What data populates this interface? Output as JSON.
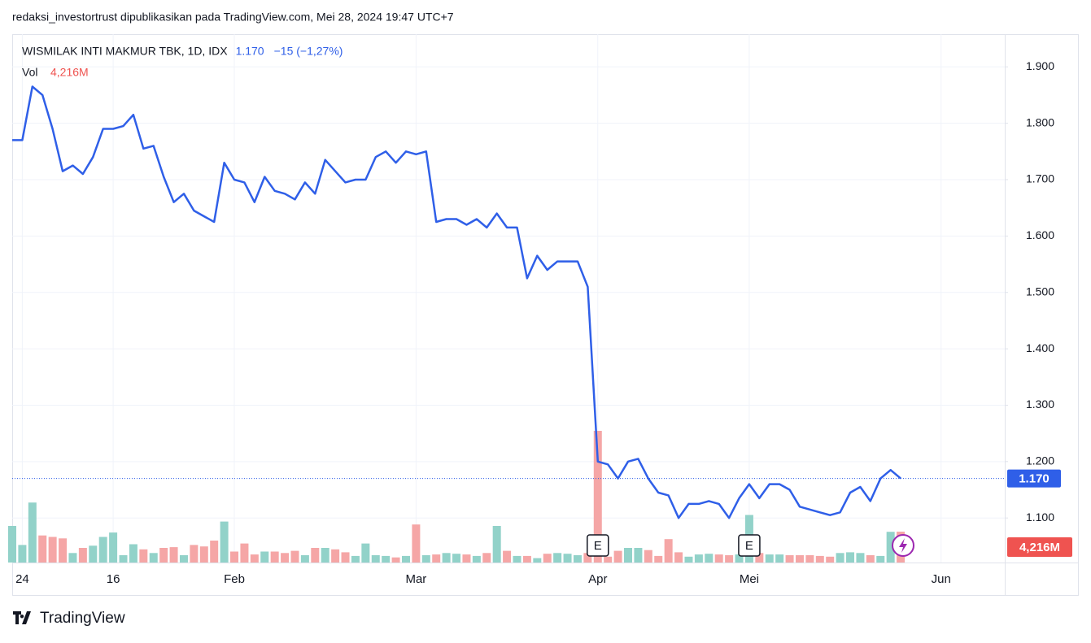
{
  "header": {
    "publisher": "redaksi_investortrust dipublikasikan pada TradingView.com, Mei 28, 2024 19:47 UTC+7"
  },
  "chart_data": {
    "type": "line",
    "title": "WISMILAK INTI MAKMUR TBK, 1D, IDX",
    "last_price": {
      "value": 1170,
      "label": "1.170"
    },
    "change": "−15 (−1,27%)",
    "volume_title": "Vol",
    "volume_label": "4,216M",
    "categories": [
      null,
      "24",
      null,
      null,
      null,
      null,
      null,
      null,
      null,
      null,
      "16",
      null,
      null,
      null,
      null,
      null,
      null,
      null,
      null,
      null,
      null,
      null,
      "Feb",
      null,
      null,
      null,
      null,
      null,
      null,
      null,
      null,
      null,
      null,
      null,
      null,
      null,
      null,
      null,
      null,
      null,
      "Mar",
      null,
      null,
      null,
      null,
      null,
      null,
      null,
      null,
      null,
      null,
      null,
      null,
      null,
      null,
      null,
      null,
      null,
      "Apr",
      null,
      null,
      null,
      null,
      null,
      null,
      null,
      null,
      null,
      null,
      null,
      null,
      null,
      null,
      "Mei",
      null,
      null,
      null,
      null,
      null,
      null,
      null,
      null,
      null,
      null,
      null,
      null,
      null,
      null,
      null,
      null,
      null,
      null,
      "Jun",
      null,
      null,
      null,
      null,
      null,
      null
    ],
    "series": [
      {
        "name": "WISMILAK INTI MAKMUR TBK",
        "color": "#2f5fe8",
        "values": [
          1770,
          1770,
          1865,
          1850,
          1790,
          1715,
          1725,
          1710,
          1740,
          1790,
          1790,
          1795,
          1815,
          1755,
          1760,
          1705,
          1660,
          1675,
          1645,
          1635,
          1625,
          1730,
          1700,
          1695,
          1660,
          1705,
          1680,
          1675,
          1665,
          1695,
          1675,
          1735,
          1715,
          1695,
          1700,
          1700,
          1740,
          1750,
          1730,
          1750,
          1745,
          1750,
          1625,
          1630,
          1630,
          1620,
          1630,
          1615,
          1640,
          1615,
          1615,
          1525,
          1565,
          1540,
          1555,
          1555,
          1555,
          1510,
          1200,
          1195,
          1170,
          1200,
          1205,
          1170,
          1145,
          1140,
          1100,
          1125,
          1125,
          1130,
          1125,
          1100,
          1135,
          1160,
          1135,
          1160,
          1160,
          1150,
          1120,
          1115,
          1110,
          1105,
          1110,
          1145,
          1155,
          1130,
          1170,
          1185,
          1170,
          null,
          null,
          null,
          null,
          null,
          null,
          null,
          null,
          null,
          null
        ]
      },
      {
        "name": "Vol",
        "up_color": "#92d2c9",
        "down_color": "#f5a6a6",
        "values": [
          5.0,
          2.4,
          8.2,
          3.7,
          3.5,
          3.3,
          1.3,
          2.0,
          2.3,
          3.5,
          4.1,
          1.0,
          2.5,
          1.8,
          1.3,
          2.0,
          2.1,
          1.0,
          2.4,
          2.2,
          3.0,
          5.6,
          1.5,
          2.6,
          1.1,
          1.5,
          1.5,
          1.3,
          1.6,
          1.0,
          2.0,
          2.0,
          1.8,
          1.4,
          0.9,
          2.6,
          1.0,
          0.9,
          0.7,
          0.9,
          5.2,
          1.0,
          1.1,
          1.3,
          1.2,
          1.1,
          0.9,
          1.3,
          5.0,
          1.6,
          0.9,
          0.9,
          0.6,
          1.2,
          1.3,
          1.2,
          1.0,
          1.3,
          18.0,
          0.8,
          1.6,
          2.0,
          2.0,
          1.7,
          0.9,
          3.2,
          1.4,
          0.8,
          1.1,
          1.2,
          1.1,
          1.0,
          1.1,
          6.5,
          1.3,
          1.1,
          1.1,
          1.0,
          1.0,
          1.0,
          0.9,
          0.8,
          1.3,
          1.4,
          1.3,
          1.0,
          0.9,
          4.2,
          4.216,
          null,
          null,
          null,
          null,
          null,
          null,
          null,
          null,
          null,
          null
        ]
      }
    ],
    "earnings": [
      {
        "at": 58,
        "label": "E"
      },
      {
        "at": 73,
        "label": "E"
      }
    ],
    "ylim": [
      1021,
      1958
    ],
    "yticks": [
      {
        "value": 1100,
        "label": "1.100"
      },
      {
        "value": 1200,
        "label": "1.200"
      },
      {
        "value": 1300,
        "label": "1.300"
      },
      {
        "value": 1400,
        "label": "1.400"
      },
      {
        "value": 1500,
        "label": "1.500"
      },
      {
        "value": 1600,
        "label": "1.600"
      },
      {
        "value": 1700,
        "label": "1.700"
      },
      {
        "value": 1800,
        "label": "1.800"
      },
      {
        "value": 1900,
        "label": "1.900"
      }
    ],
    "grid": true
  },
  "footer": {
    "brand": "TradingView"
  }
}
